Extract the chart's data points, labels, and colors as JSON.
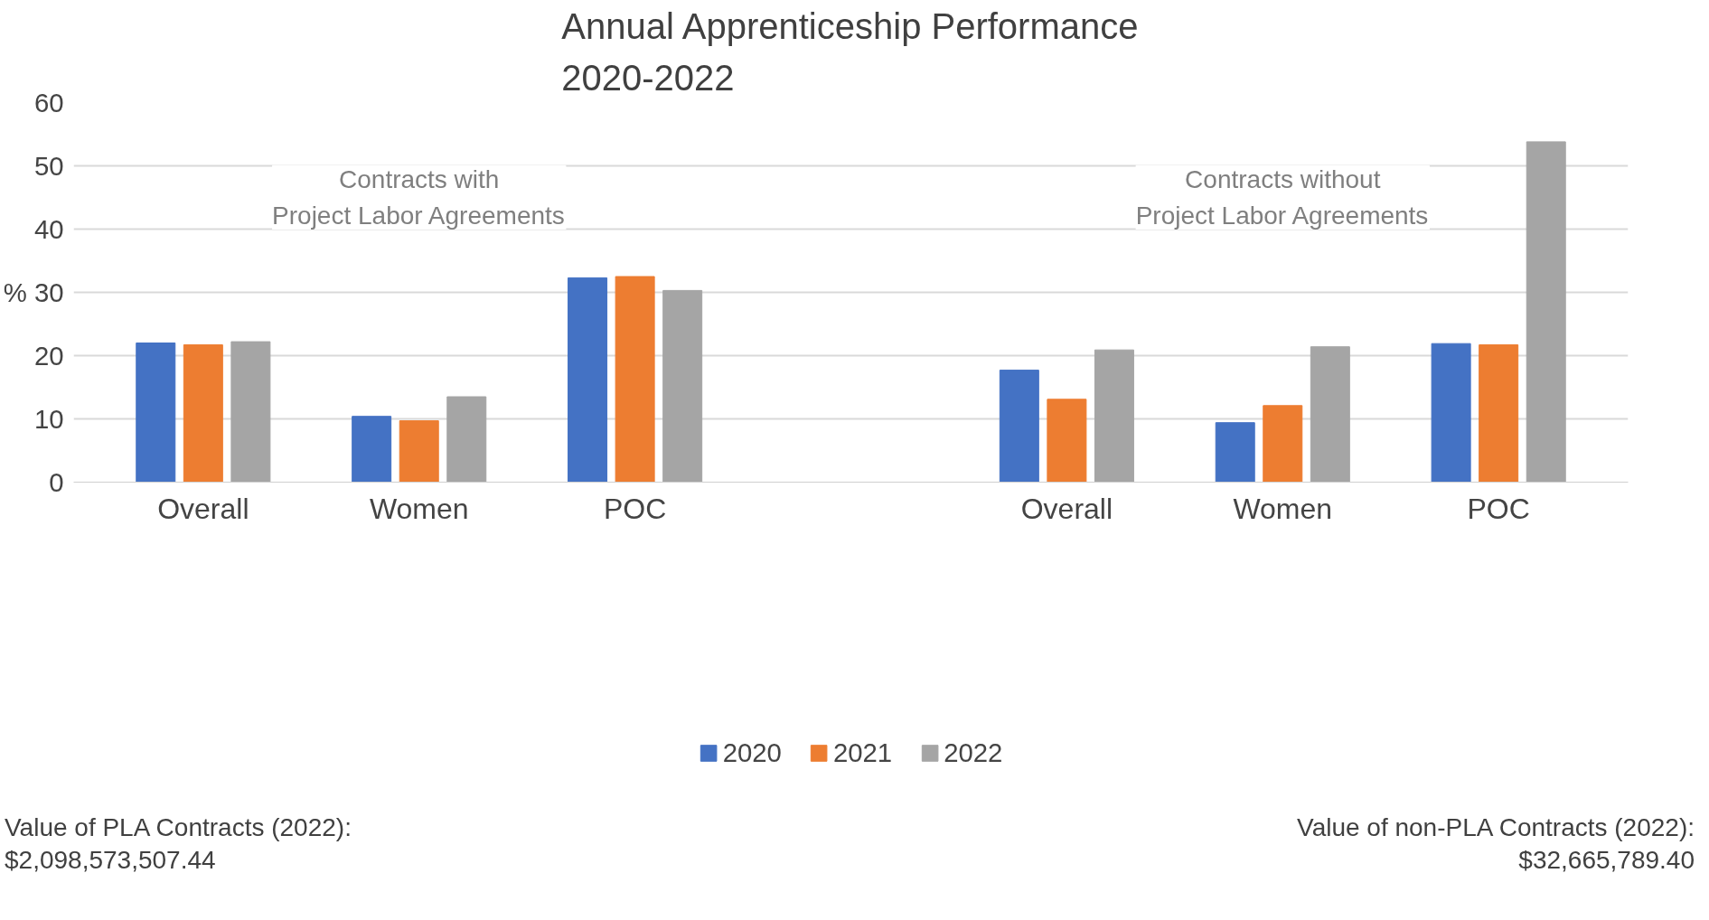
{
  "chart_data": {
    "type": "bar",
    "title": "Annual Apprenticeship Performance\n2020-2022",
    "ylabel": "%",
    "categories": [
      "Overall",
      "Women",
      "POC",
      null,
      "Overall",
      "Women",
      "POC"
    ],
    "series": [
      {
        "name": "2020",
        "color": "#4472c4",
        "values": [
          22,
          10.4,
          32.3,
          null,
          17.7,
          9.4,
          21.9
        ]
      },
      {
        "name": "2021",
        "color": "#ed7d31",
        "values": [
          21.7,
          9.7,
          32.5,
          null,
          13.1,
          12.1,
          21.7
        ]
      },
      {
        "name": "2022",
        "color": "#a5a5a5",
        "values": [
          22.2,
          13.5,
          30.3,
          null,
          20.9,
          21.4,
          53.8
        ]
      }
    ],
    "ylim": [
      0,
      60
    ],
    "yticks": [
      0,
      10,
      20,
      30,
      40,
      50,
      60
    ],
    "grid": "y",
    "legend": "bottom",
    "annotations": [
      "Contracts with\nProject Labor Agreements",
      "Contracts without\nProject Labor Agreements",
      "Value of PLA Contracts (2022):\n$2,098,573,507.44",
      "Value of non-PLA Contracts (2022):\n$32,665,789.40"
    ]
  }
}
